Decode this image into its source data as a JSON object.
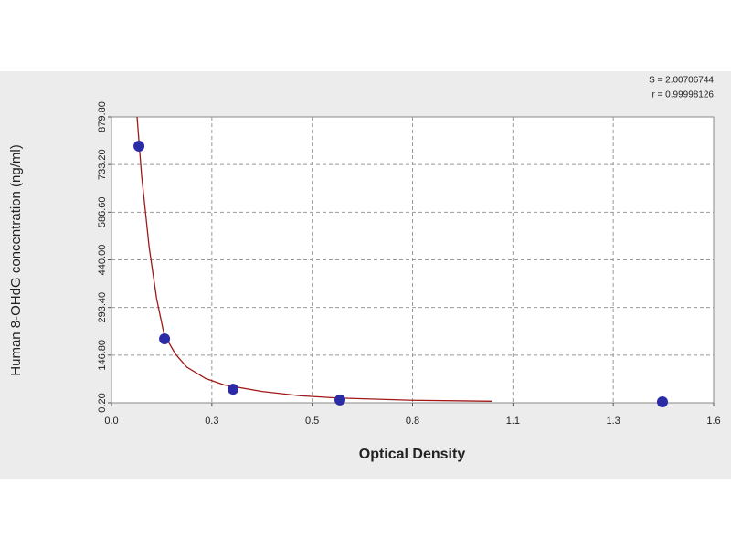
{
  "chart_data": {
    "type": "scatter",
    "x_label": "Optical Density",
    "y_label": "Human 8-OHdG concentration (ng/ml)",
    "annotations": [
      "S = 2.00706744",
      "r = 0.99998126"
    ],
    "xlim": [
      0,
      1.6
    ],
    "ylim": [
      0.2,
      879.8
    ],
    "xticks": [
      {
        "value": 0,
        "label": "0.0"
      },
      {
        "value": 0.2667,
        "label": "0.3"
      },
      {
        "value": 0.5333,
        "label": "0.5"
      },
      {
        "value": 0.8,
        "label": "0.8"
      },
      {
        "value": 1.0667,
        "label": "1.1"
      },
      {
        "value": 1.3333,
        "label": "1.3"
      },
      {
        "value": 1.6,
        "label": "1.6"
      }
    ],
    "yticks": [
      {
        "value": 0.2,
        "label": "0.20"
      },
      {
        "value": 146.8,
        "label": "146.80"
      },
      {
        "value": 293.4,
        "label": "293.40"
      },
      {
        "value": 440,
        "label": "440.00"
      },
      {
        "value": 586.6,
        "label": "586.60"
      },
      {
        "value": 733.2,
        "label": "733.20"
      },
      {
        "value": 879.8,
        "label": "879.80"
      }
    ],
    "grid": true,
    "series": [
      {
        "type": "scatter",
        "color": "#2b2ba6",
        "x": [
          0.073,
          0.141,
          0.323,
          0.607,
          1.464
        ],
        "values": [
          790,
          197,
          42,
          9,
          3
        ]
      },
      {
        "type": "line",
        "color": "#a01818",
        "x": [
          0.068,
          0.08,
          0.1,
          0.12,
          0.14,
          0.17,
          0.2,
          0.25,
          0.3,
          0.4,
          0.5,
          0.6,
          0.8,
          1.01
        ],
        "values": [
          880,
          700,
          480,
          320,
          210,
          150,
          110,
          75,
          55,
          35,
          22,
          15,
          8,
          5
        ]
      }
    ]
  }
}
